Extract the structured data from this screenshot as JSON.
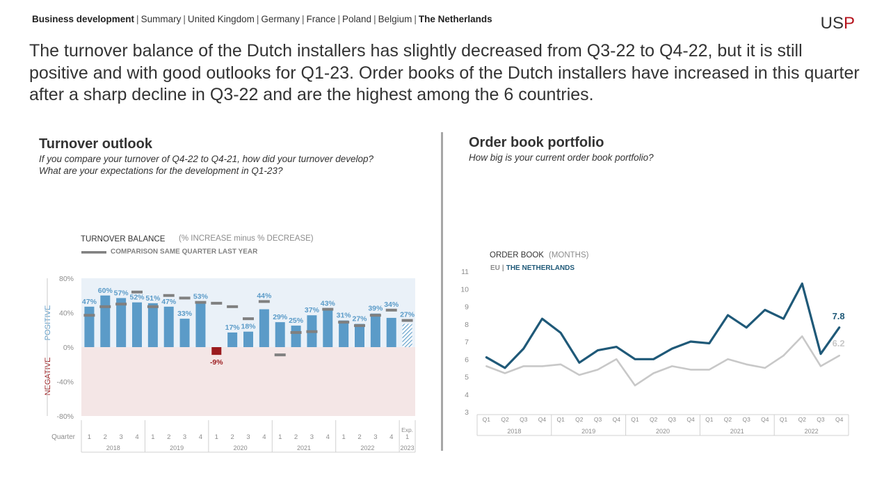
{
  "nav": {
    "items": [
      {
        "label": "Business development",
        "active": true
      },
      {
        "label": "Summary",
        "active": false
      },
      {
        "label": "United Kingdom",
        "active": false
      },
      {
        "label": "Germany",
        "active": false
      },
      {
        "label": "France",
        "active": false
      },
      {
        "label": "Poland",
        "active": false
      },
      {
        "label": "Belgium",
        "active": false
      },
      {
        "label": "The Netherlands",
        "active": true
      }
    ],
    "separator": "|"
  },
  "logo": {
    "text_a": "US",
    "text_b": "P"
  },
  "headline": "The turnover balance of the Dutch installers has slightly decreased from Q3-22 to Q4-22, but it is still positive and with good outlooks for Q1-23. Order books of the Dutch installers have increased in this quarter after a sharp decline in Q3-22 and are the highest among the 6 countries.",
  "left": {
    "title": "Turnover outlook",
    "subtitle_line1": "If you compare your turnover of Q4-22 to Q4-21, how did your turnover develop?",
    "subtitle_line2": "What are your expectations for the development in Q1-23?"
  },
  "right": {
    "title": "Order book portfolio",
    "subtitle": "How big is your current order book portfolio?"
  },
  "chart_data": [
    {
      "type": "bar",
      "title": "TURNOVER BALANCE",
      "title_note": "(% INCREASE minus % DECREASE)",
      "legend_label": "COMPARISON SAME QUARTER LAST YEAR",
      "ylim": [
        -80,
        80
      ],
      "yticks": [
        "80%",
        "40%",
        "0%",
        "-40%",
        "-80%"
      ],
      "ytick_values": [
        80,
        40,
        0,
        -40,
        -80
      ],
      "positive_label": "POSITIVE",
      "negative_label": "NEGATIVE",
      "x_row_label": "Quarter",
      "categories": [
        "1",
        "2",
        "3",
        "4",
        "1",
        "2",
        "3",
        "4",
        "1",
        "2",
        "3",
        "4",
        "1",
        "2",
        "3",
        "4",
        "1",
        "2",
        "3",
        "4",
        "Exp. 1"
      ],
      "years": [
        "2018",
        "2019",
        "2020",
        "2021",
        "2022",
        "2023"
      ],
      "values": [
        47,
        60,
        57,
        52,
        51,
        47,
        33,
        53,
        -9,
        17,
        18,
        44,
        29,
        25,
        37,
        43,
        31,
        27,
        39,
        34,
        27
      ],
      "value_labels": [
        "47%",
        "60%",
        "57%",
        "52%",
        "51%",
        "47%",
        "33%",
        "53%",
        "-9%",
        "17%",
        "18%",
        "44%",
        "29%",
        "25%",
        "37%",
        "43%",
        "31%",
        "27%",
        "39%",
        "34%",
        "27%"
      ],
      "comparison": [
        37,
        47,
        50,
        64,
        47,
        60,
        57,
        52,
        51,
        47,
        33,
        53,
        -9,
        17,
        18,
        44,
        29,
        25,
        37,
        43,
        31
      ],
      "colors": {
        "bar": "#5b9bc8",
        "negative_bar": "#9b1b1e",
        "comparison": "#808080",
        "label": "#5b9bc8",
        "positive_bg": "#eaf1f8",
        "negative_bg": "#f4e6e6",
        "negative_text": "#9b1b1e"
      }
    },
    {
      "type": "line",
      "title": "ORDER BOOK",
      "title_note": "(MONTHS)",
      "legend": {
        "eu": "EU",
        "sep": "|",
        "nl": "THE NETHERLANDS"
      },
      "ylim": [
        3,
        11
      ],
      "yticks": [
        11,
        10,
        9,
        8,
        7,
        6,
        5,
        4,
        3
      ],
      "categories": [
        "Q1",
        "Q2",
        "Q3",
        "Q4",
        "Q1",
        "Q2",
        "Q3",
        "Q4",
        "Q1",
        "Q2",
        "Q3",
        "Q4",
        "Q1",
        "Q2",
        "Q3",
        "Q4",
        "Q1",
        "Q2",
        "Q3",
        "Q4"
      ],
      "years": [
        "2018",
        "2019",
        "2020",
        "2021",
        "2022"
      ],
      "series": [
        {
          "name": "THE NETHERLANDS",
          "color": "#1f5978",
          "values": [
            6.1,
            5.5,
            6.6,
            8.3,
            7.5,
            5.8,
            6.5,
            6.7,
            6.0,
            6.0,
            6.6,
            7.0,
            6.9,
            8.5,
            7.8,
            8.8,
            8.3,
            10.3,
            6.3,
            7.8
          ]
        },
        {
          "name": "EU",
          "color": "#c8c8c8",
          "values": [
            5.6,
            5.2,
            5.6,
            5.6,
            5.7,
            5.1,
            5.4,
            6.0,
            4.5,
            5.2,
            5.6,
            5.4,
            5.4,
            6.0,
            5.7,
            5.5,
            6.2,
            7.3,
            5.6,
            6.2
          ]
        }
      ],
      "end_labels": [
        "7.8",
        "6.2"
      ]
    }
  ]
}
